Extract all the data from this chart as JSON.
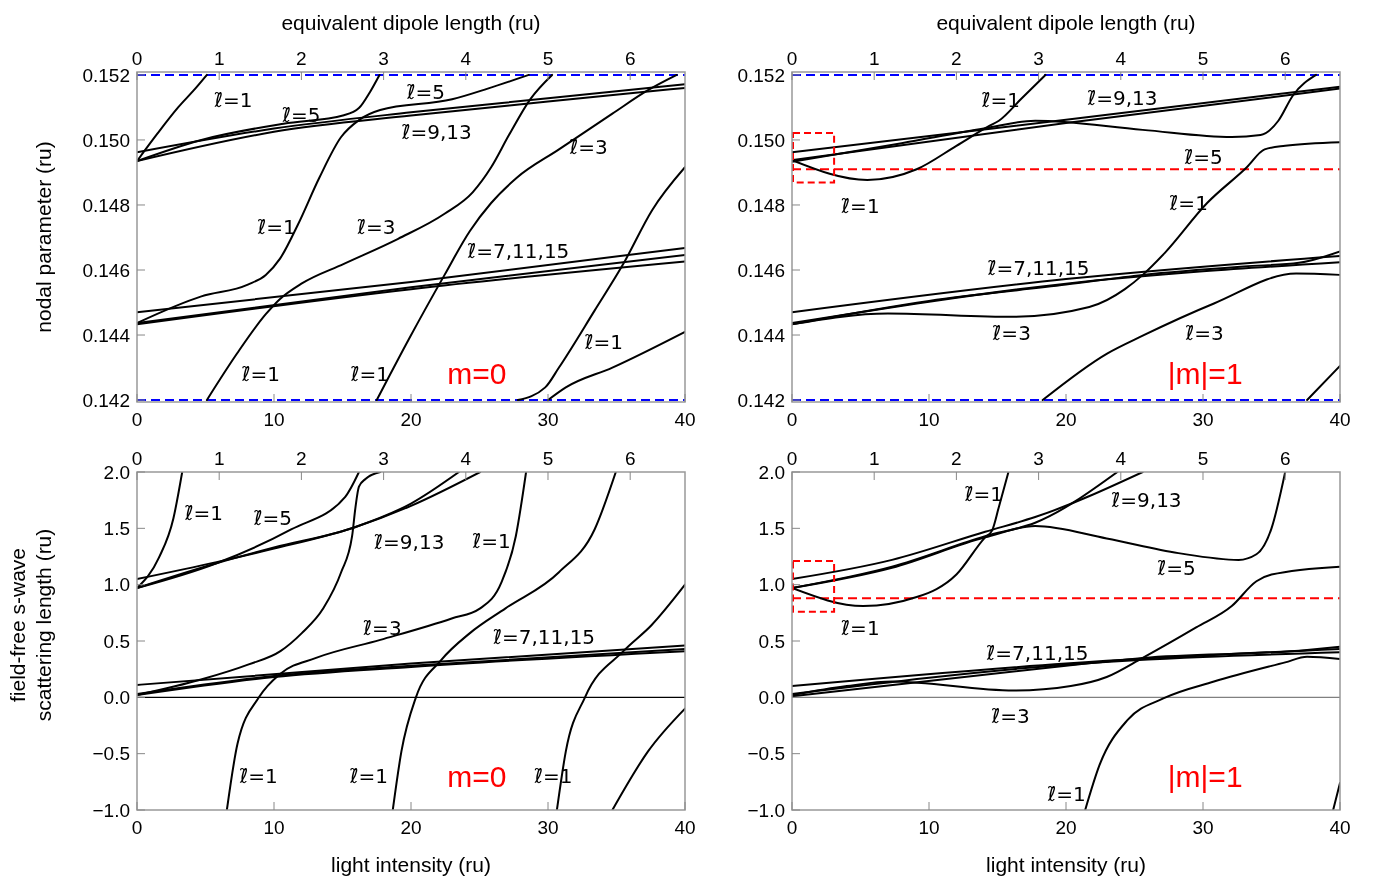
{
  "chart_data": [
    {
      "type": "line",
      "ylabel": "nodal parameter (ru)",
      "x2label": "equivalent dipole length (ru)",
      "xlim": [
        0,
        40
      ],
      "xticks": [
        0,
        10,
        20,
        30,
        40
      ],
      "x2lim": [
        0,
        6.6667
      ],
      "x2ticks": [
        0,
        1,
        2,
        3,
        4,
        5,
        6
      ],
      "ylim": [
        0.14194,
        0.15209
      ],
      "yticks": [
        0.142,
        0.144,
        0.146,
        0.148,
        {
          "value": 0.15,
          "label": "0.150"
        },
        0.152
      ],
      "ref_lines": [
        {
          "axis": "y",
          "value": 0.152,
          "color": "#0000ff",
          "line_style": "dashed"
        },
        {
          "axis": "y",
          "value": 0.142,
          "color": "#0000ff",
          "line_style": "dashed"
        }
      ],
      "series": [
        {
          "color": "#000000",
          "x": [
            0,
            1.5,
            3,
            4.3,
            5.1
          ],
          "values": [
            0.14935,
            0.1502,
            0.151,
            0.1516,
            0.152
          ]
        },
        {
          "color": "#000000",
          "x": [
            0,
            10,
            20,
            30,
            40
          ],
          "values": [
            0.14962,
            0.15035,
            0.15085,
            0.15128,
            0.15171
          ]
        },
        {
          "color": "#000000",
          "x": [
            0,
            10,
            20,
            30,
            40
          ],
          "values": [
            0.14935,
            0.15025,
            0.15075,
            0.15118,
            0.1516
          ]
        },
        {
          "color": "#000000",
          "x": [
            0,
            4.7,
            10.7,
            15.1,
            16.2,
            17,
            17.7
          ],
          "values": [
            0.14935,
            0.15,
            0.1505,
            0.15076,
            0.15098,
            0.15147,
            0.152
          ]
        },
        {
          "color": "#000000",
          "x": [
            0,
            4.7,
            8.09,
            9.4,
            10.44,
            11.75,
            13.3,
            14.9,
            16.2,
            17.75,
            23,
            25.6,
            28.6
          ],
          "values": [
            0.14437,
            0.14519,
            0.14555,
            0.14585,
            0.14635,
            0.1474,
            0.14883,
            0.15009,
            0.15061,
            0.15092,
            0.15125,
            0.15158,
            0.152
          ]
        },
        {
          "color": "#000000",
          "x": [
            5.1,
            7.3,
            9.4,
            10.44,
            12,
            15.1,
            19.06,
            22.45,
            24.5,
            25.85,
            27.15,
            28.7,
            30.3
          ],
          "values": [
            0.142,
            0.14343,
            0.14464,
            0.14511,
            0.14558,
            0.14619,
            0.14696,
            0.14773,
            0.14839,
            0.14916,
            0.15015,
            0.15125,
            0.152
          ]
        },
        {
          "color": "#000000",
          "x": [
            17.5,
            19.84,
            22.45,
            24.3,
            25.85,
            27.7,
            30.8,
            34.7,
            37.3,
            39.4
          ],
          "values": [
            0.142,
            0.14387,
            0.14585,
            0.1472,
            0.14806,
            0.14883,
            0.14971,
            0.15081,
            0.15153,
            0.152
          ]
        },
        {
          "color": "#000000",
          "x": [
            27.8,
            29.8,
            30.8,
            33.4,
            35.5,
            37.6,
            40
          ],
          "values": [
            0.142,
            0.14239,
            0.143,
            0.14475,
            0.14619,
            0.14784,
            0.14916
          ]
        },
        {
          "color": "#000000",
          "x": [
            30,
            31.3,
            34.7,
            40
          ],
          "values": [
            0.142,
            0.14239,
            0.143,
            0.1441
          ]
        },
        {
          "color": "#000000",
          "x": [
            0,
            20,
            40
          ],
          "values": [
            0.1447,
            0.14563,
            0.14668
          ]
        },
        {
          "color": "#000000",
          "x": [
            0,
            20,
            40
          ],
          "values": [
            0.14437,
            0.14547,
            0.14646
          ]
        },
        {
          "color": "#000000",
          "x": [
            0,
            20,
            40
          ],
          "values": [
            0.14433,
            0.14541,
            0.14626
          ]
        }
      ],
      "annotations": [
        "ℓ̃=1",
        "ℓ̃=5",
        "ℓ̃=5",
        "ℓ̃=9,13",
        "ℓ̃=3",
        "ℓ̃=1",
        "ℓ̃=3",
        "ℓ̃=7,11,15",
        "ℓ̃=1",
        "ℓ̃=1",
        "ℓ̃=1",
        "m=0"
      ]
    },
    {
      "type": "line",
      "x2label": "equivalent dipole length (ru)",
      "xlim": [
        0,
        40
      ],
      "xticks": [
        0,
        10,
        20,
        30,
        40
      ],
      "x2lim": [
        0,
        6.6667
      ],
      "x2ticks": [
        0,
        1,
        2,
        3,
        4,
        5,
        6
      ],
      "ylim": [
        0.14194,
        0.15209
      ],
      "yticks": [
        0.142,
        0.144,
        0.146,
        0.148,
        {
          "value": 0.15,
          "label": "0.150"
        },
        0.152
      ],
      "ref_lines": [
        {
          "axis": "y",
          "value": 0.152,
          "color": "#0000ff",
          "line_style": "dashed"
        },
        {
          "axis": "y",
          "value": 0.142,
          "color": "#0000ff",
          "line_style": "dashed"
        },
        {
          "axis": "y",
          "value": 0.1491,
          "color": "#ff0000",
          "line_style": "dashed"
        }
      ],
      "series": [
        {
          "color": "#000000",
          "x": [
            0,
            20,
            40
          ],
          "values": [
            0.14962,
            0.15062,
            0.15164
          ]
        },
        {
          "color": "#000000",
          "x": [
            0,
            20,
            40
          ],
          "values": [
            0.14938,
            0.15052,
            0.15158
          ]
        },
        {
          "color": "#000000",
          "x": [
            0,
            5.5,
            9.1,
            12,
            14.4,
            15.1,
            16.7,
            18.5
          ],
          "values": [
            0.14938,
            0.14877,
            0.1491,
            0.14982,
            0.15043,
            0.15059,
            0.15125,
            0.152
          ]
        },
        {
          "color": "#000000",
          "x": [
            0,
            8,
            14,
            17.75,
            25.6,
            32.1,
            34.2,
            35.5,
            36.55,
            38.25
          ],
          "values": [
            0.14933,
            0.1499,
            0.15035,
            0.15059,
            0.15031,
            0.15009,
            0.15015,
            0.15059,
            0.15136,
            0.152
          ]
        },
        {
          "color": "#000000",
          "x": [
            0,
            7,
            16.2,
            21.7,
            24.3,
            25.6,
            27.2,
            30.3,
            33.2,
            34.5,
            36,
            40
          ],
          "values": [
            0.14433,
            0.14466,
            0.14456,
            0.14486,
            0.14541,
            0.14585,
            0.14652,
            0.14806,
            0.14916,
            0.14971,
            0.14982,
            0.14993
          ]
        },
        {
          "color": "#000000",
          "x": [
            18.3,
            23,
            25.6,
            30.8,
            36.8,
            40
          ],
          "values": [
            0.142,
            0.14343,
            0.14398,
            0.14497,
            0.14589,
            0.14585
          ]
        },
        {
          "color": "#000000",
          "x": [
            37.6,
            40
          ],
          "values": [
            0.142,
            0.14305
          ]
        },
        {
          "color": "#000000",
          "x": [
            0,
            20,
            40
          ],
          "values": [
            0.1447,
            0.14572,
            0.14643
          ]
        },
        {
          "color": "#000000",
          "x": [
            0,
            20,
            40
          ],
          "values": [
            0.14437,
            0.14558,
            0.14624
          ]
        },
        {
          "color": "#000000",
          "x": [
            0,
            10,
            20,
            25.6,
            33,
            37,
            40
          ],
          "values": [
            0.14433,
            0.14505,
            0.14555,
            0.14585,
            0.14611,
            0.14622,
            0.14657
          ]
        }
      ],
      "annotations": [
        "ℓ̃=1",
        "ℓ̃=9,13",
        "ℓ̃=5",
        "ℓ̃=1",
        "ℓ̃=1",
        "ℓ̃=7,11,15",
        "ℓ̃=3",
        "ℓ̃=3",
        "|m|=1"
      ]
    },
    {
      "type": "line",
      "ylabel": "field-free s-wave\nscattering length (ru)",
      "xlabel": "light intensity (ru)",
      "xlim": [
        0,
        40
      ],
      "xticks": [
        0,
        10,
        20,
        30,
        40
      ],
      "x2lim": [
        0,
        6.6667
      ],
      "x2ticks": [
        0,
        1,
        2,
        3,
        4,
        5,
        6
      ],
      "ylim": [
        -1,
        2
      ],
      "yticks": [
        {
          "value": -1,
          "label": "−1.0"
        },
        {
          "value": -0.5,
          "label": "−0.5"
        },
        {
          "value": 0,
          "label": "0.0"
        },
        {
          "value": 0.5,
          "label": "0.5"
        },
        {
          "value": 1,
          "label": "1.0"
        },
        {
          "value": 1.5,
          "label": "1.5"
        },
        {
          "value": 2,
          "label": "2.0"
        }
      ],
      "ref_lines": [
        {
          "axis": "y",
          "value": 0,
          "color": "#000000"
        }
      ],
      "series": [
        {
          "color": "#000000",
          "x": [
            0,
            1.6,
            2.66,
            3.3
          ],
          "values": [
            0.97,
            1.24,
            1.59,
            2.0
          ]
        },
        {
          "color": "#000000",
          "x": [
            0,
            5.8,
            10,
            15.9,
            20,
            25.05
          ],
          "values": [
            1.05,
            1.2,
            1.32,
            1.51,
            1.7,
            2.0
          ]
        },
        {
          "color": "#000000",
          "x": [
            0,
            5.8,
            10,
            15.9,
            20,
            23.5
          ],
          "values": [
            0.97,
            1.19,
            1.33,
            1.51,
            1.72,
            2.0
          ]
        },
        {
          "color": "#000000",
          "x": [
            0,
            5.8,
            11.25,
            15.2,
            16.2
          ],
          "values": [
            0.97,
            1.19,
            1.49,
            1.78,
            2.0
          ]
        },
        {
          "color": "#000000",
          "x": [
            6.56,
            7.34,
            8.9,
            10.47,
            13.07,
            17.76,
            22.97,
            25.05,
            26.6,
            27.65,
            28.4
          ],
          "values": [
            -1,
            -0.41,
            0,
            0.21,
            0.35,
            0.51,
            0.7,
            0.79,
            1.02,
            1.43,
            2.0
          ]
        },
        {
          "color": "#000000",
          "x": [
            0,
            4.74,
            8.1,
            10.47,
            12.03,
            13.6,
            14.9,
            15.7,
            15.94,
            16.2,
            16.7,
            17.76
          ],
          "values": [
            0.02,
            0.16,
            0.29,
            0.41,
            0.57,
            0.79,
            1.11,
            1.43,
            1.68,
            1.87,
            1.94,
            2.0
          ]
        },
        {
          "color": "#000000",
          "x": [
            18.67,
            19.3,
            20.36,
            22.2,
            24.3,
            26.9,
            30.8,
            33.4,
            34.95
          ],
          "values": [
            -1,
            -0.48,
            0,
            0.33,
            0.57,
            0.79,
            1.11,
            1.49,
            2.0
          ]
        },
        {
          "color": "#000000",
          "x": [
            30.65,
            31.3,
            32.7,
            35.5,
            37.55,
            40
          ],
          "values": [
            -1,
            -0.48,
            0,
            0.41,
            0.64,
            1.0
          ]
        },
        {
          "color": "#000000",
          "x": [
            34.7,
            37.3,
            40
          ],
          "values": [
            -1,
            -0.48,
            -0.1
          ]
        },
        {
          "color": "#000000",
          "x": [
            0,
            20,
            40
          ],
          "values": [
            0.11,
            0.3,
            0.46
          ]
        },
        {
          "color": "#000000",
          "x": [
            0,
            10,
            20,
            40
          ],
          "values": [
            0.03,
            0.19,
            0.28,
            0.43
          ]
        },
        {
          "color": "#000000",
          "x": [
            0,
            10,
            20,
            40
          ],
          "values": [
            0.02,
            0.18,
            0.27,
            0.41
          ]
        }
      ],
      "annotations": [
        "ℓ̃=1",
        "ℓ̃=5",
        "ℓ̃=9,13",
        "ℓ̃=1",
        "ℓ̃=3",
        "ℓ̃=7,11,15",
        "ℓ̃=1",
        "ℓ̃=1",
        "ℓ̃=1",
        "m=0"
      ]
    },
    {
      "type": "line",
      "xlabel": "light intensity (ru)",
      "xlim": [
        0,
        40
      ],
      "xticks": [
        0,
        10,
        20,
        30,
        40
      ],
      "x2lim": [
        0,
        6.6667
      ],
      "x2ticks": [
        0,
        1,
        2,
        3,
        4,
        5,
        6
      ],
      "ylim": [
        -1,
        2
      ],
      "yticks": [
        {
          "value": -1,
          "label": "−1.0"
        },
        {
          "value": -0.5,
          "label": "−0.5"
        },
        {
          "value": 0,
          "label": "0.0"
        },
        {
          "value": 0.5,
          "label": "0.5"
        },
        {
          "value": 1,
          "label": "1.0"
        },
        {
          "value": 1.5,
          "label": "1.5"
        },
        {
          "value": 2,
          "label": "2.0"
        }
      ],
      "ref_lines": [
        {
          "axis": "y",
          "value": 0,
          "color": "#808080"
        },
        {
          "axis": "y",
          "value": 0.88,
          "color": "#ff0000",
          "line_style": "dashed"
        }
      ],
      "series": [
        {
          "color": "#000000",
          "x": [
            0,
            5.2,
            9.1,
            12,
            14.1,
            14.6,
            15.1,
            15.8
          ],
          "values": [
            0.97,
            0.81,
            0.89,
            1.09,
            1.42,
            1.48,
            1.69,
            2.0
          ]
        },
        {
          "color": "#000000",
          "x": [
            0,
            7.3,
            14.1,
            17.75,
            22.97,
            28.2,
            32.6,
            33.9,
            35,
            36
          ],
          "values": [
            0.97,
            1.15,
            1.42,
            1.52,
            1.41,
            1.28,
            1.22,
            1.27,
            1.5,
            2.0
          ]
        },
        {
          "color": "#000000",
          "x": [
            0,
            7.3,
            14.1,
            17.75,
            25.6
          ],
          "values": [
            1.05,
            1.22,
            1.47,
            1.6,
            2.0
          ]
        },
        {
          "color": "#000000",
          "x": [
            0,
            7.3,
            14.1,
            17.75,
            23.75
          ],
          "values": [
            0.97,
            1.16,
            1.43,
            1.55,
            2.0
          ]
        },
        {
          "color": "#000000",
          "x": [
            0,
            4,
            7.3,
            16.2,
            20.35,
            22.97,
            25.6,
            29.5,
            32.1,
            33.9,
            35,
            40
          ],
          "values": [
            0.02,
            0.1,
            0.14,
            0.06,
            0.1,
            0.18,
            0.35,
            0.62,
            0.81,
            1.03,
            1.09,
            1.16
          ]
        },
        {
          "color": "#000000",
          "x": [
            21.4,
            22.45,
            24.5,
            27.1,
            30.8,
            36,
            37.6,
            40
          ],
          "values": [
            -1,
            -0.6,
            -0.2,
            -0.01,
            0.14,
            0.31,
            0.36,
            0.34
          ]
        },
        {
          "color": "#000000",
          "x": [
            39.5,
            40
          ],
          "values": [
            -1,
            -0.76
          ]
        },
        {
          "color": "#000000",
          "x": [
            0,
            20,
            40
          ],
          "values": [
            0.1,
            0.3,
            0.43
          ]
        },
        {
          "color": "#000000",
          "x": [
            0,
            20,
            40
          ],
          "values": [
            0.03,
            0.29,
            0.4
          ]
        },
        {
          "color": "#000000",
          "x": [
            0,
            20,
            25.6,
            37.6,
            40
          ],
          "values": [
            0.01,
            0.28,
            0.35,
            0.42,
            0.45
          ]
        }
      ],
      "annotations": [
        "ℓ̃=1",
        "ℓ̃=9,13",
        "ℓ̃=5",
        "ℓ̃=1",
        "ℓ̃=7,11,15",
        "ℓ̃=3",
        "ℓ̃=1",
        "|m|=1"
      ]
    }
  ]
}
